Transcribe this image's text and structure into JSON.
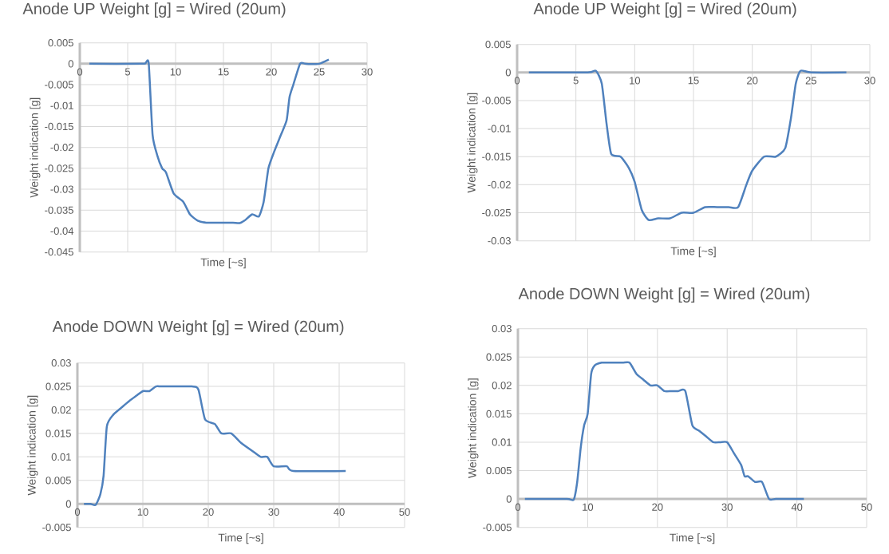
{
  "chart_data": [
    {
      "type": "line",
      "title": "Anode UP Weight [g] = Wired (20um)",
      "xlabel": "Time [~s]",
      "ylabel": "Weight indication [g]",
      "xlim": [
        0,
        30
      ],
      "xticks": [
        0,
        5,
        10,
        15,
        20,
        25,
        30
      ],
      "ylim": [
        -0.045,
        0.005
      ],
      "yticks": [
        -0.045,
        -0.04,
        -0.035,
        -0.03,
        -0.025,
        -0.02,
        -0.015,
        -0.01,
        -0.005,
        0,
        0.005
      ],
      "grid": true,
      "line_style": "solid",
      "series": [
        {
          "color": "#4f81bd",
          "x": [
            1,
            6.5,
            6.9,
            7.2,
            7.6,
            8.1,
            8.6,
            9,
            9.8,
            10.8,
            11.5,
            12.3,
            13.2,
            15,
            16,
            16.7,
            17.2,
            18,
            18.7,
            19.2,
            19.7,
            20.3,
            21,
            21.6,
            21.9,
            22.3,
            23,
            23.5,
            24,
            25,
            26
          ],
          "values": [
            0,
            0,
            0.0003,
            0,
            -0.017,
            -0.022,
            -0.025,
            -0.026,
            -0.031,
            -0.033,
            -0.036,
            -0.0375,
            -0.038,
            -0.038,
            -0.038,
            -0.0381,
            -0.0375,
            -0.036,
            -0.0365,
            -0.033,
            -0.025,
            -0.021,
            -0.017,
            -0.0135,
            -0.008,
            -0.005,
            0,
            0,
            -0.0001,
            0,
            0.001
          ]
        }
      ]
    },
    {
      "type": "line",
      "title": "Anode UP Weight [g] = Wired (20um)",
      "xlabel": "Time [~s]",
      "ylabel": "Weight indication [g]",
      "xlim": [
        0,
        30
      ],
      "xticks": [
        0,
        5,
        10,
        15,
        20,
        25,
        30
      ],
      "ylim": [
        -0.03,
        0.005
      ],
      "yticks": [
        -0.03,
        -0.025,
        -0.02,
        -0.015,
        -0.01,
        -0.005,
        0,
        0.005
      ],
      "grid": true,
      "line_style": "solid",
      "series": [
        {
          "color": "#4f81bd",
          "x": [
            1,
            6,
            6.7,
            7.2,
            7.6,
            8,
            8.8,
            9.5,
            10,
            10.6,
            11.2,
            12,
            13,
            14,
            15,
            16,
            17,
            18,
            18.8,
            19.5,
            20,
            21,
            22,
            22.8,
            23.3,
            23.7,
            24.1,
            25,
            28
          ],
          "values": [
            0,
            0,
            0.0003,
            -0.002,
            -0.009,
            -0.0145,
            -0.015,
            -0.017,
            -0.0195,
            -0.0245,
            -0.0263,
            -0.026,
            -0.026,
            -0.025,
            -0.025,
            -0.024,
            -0.024,
            -0.024,
            -0.024,
            -0.02,
            -0.0175,
            -0.015,
            -0.015,
            -0.0135,
            -0.008,
            -0.002,
            0.0003,
            0,
            0
          ]
        }
      ]
    },
    {
      "type": "line",
      "title": "Anode DOWN Weight [g] = Wired (20um)",
      "xlabel": "Time [~s]",
      "ylabel": "Weight indication [g]",
      "xlim": [
        0,
        50
      ],
      "xticks": [
        0,
        10,
        20,
        30,
        40,
        50
      ],
      "ylim": [
        -0.005,
        0.03
      ],
      "yticks": [
        -0.005,
        0,
        0.005,
        0.01,
        0.015,
        0.02,
        0.025,
        0.03
      ],
      "grid": true,
      "line_style": "solid",
      "series": [
        {
          "color": "#4f81bd",
          "x": [
            1,
            2,
            2.8,
            3.5,
            4,
            4.5,
            5.5,
            7,
            8,
            9,
            10,
            11,
            12,
            13,
            17.5,
            18.5,
            19.5,
            21,
            22,
            23.5,
            25,
            27,
            28,
            29,
            30,
            32,
            33,
            41
          ],
          "values": [
            0,
            0,
            -0.0002,
            0.002,
            0.006,
            0.0165,
            0.019,
            0.0208,
            0.022,
            0.023,
            0.024,
            0.024,
            0.025,
            0.025,
            0.025,
            0.0243,
            0.018,
            0.017,
            0.015,
            0.015,
            0.013,
            0.011,
            0.01,
            0.01,
            0.008,
            0.008,
            0.007,
            0.007
          ]
        }
      ]
    },
    {
      "type": "line",
      "title": "Anode DOWN Weight [g] = Wired (20um)",
      "xlabel": "Time [~s]",
      "ylabel": "Weight indication [g]",
      "xlim": [
        0,
        50
      ],
      "xticks": [
        0,
        10,
        20,
        30,
        40,
        50
      ],
      "ylim": [
        -0.005,
        0.03
      ],
      "yticks": [
        -0.005,
        0,
        0.005,
        0.01,
        0.015,
        0.02,
        0.025,
        0.03
      ],
      "grid": true,
      "line_style": "solid",
      "series": [
        {
          "color": "#4f81bd",
          "x": [
            1,
            7,
            8,
            8.5,
            9,
            9.5,
            10,
            10.5,
            11,
            12,
            13,
            15,
            16,
            17,
            18,
            19,
            20,
            21,
            22,
            23,
            24,
            25,
            26,
            27,
            28,
            29,
            30,
            31,
            32,
            32.5,
            33,
            34,
            35,
            36,
            37,
            41
          ],
          "values": [
            0,
            0,
            -0.0001,
            0.003,
            0.009,
            0.013,
            0.015,
            0.022,
            0.0235,
            0.024,
            0.024,
            0.024,
            0.024,
            0.022,
            0.021,
            0.02,
            0.02,
            0.019,
            0.019,
            0.019,
            0.019,
            0.013,
            0.012,
            0.011,
            0.01,
            0.01,
            0.01,
            0.008,
            0.006,
            0.004,
            0.004,
            0.003,
            0.003,
            0,
            0,
            0
          ]
        }
      ]
    }
  ]
}
